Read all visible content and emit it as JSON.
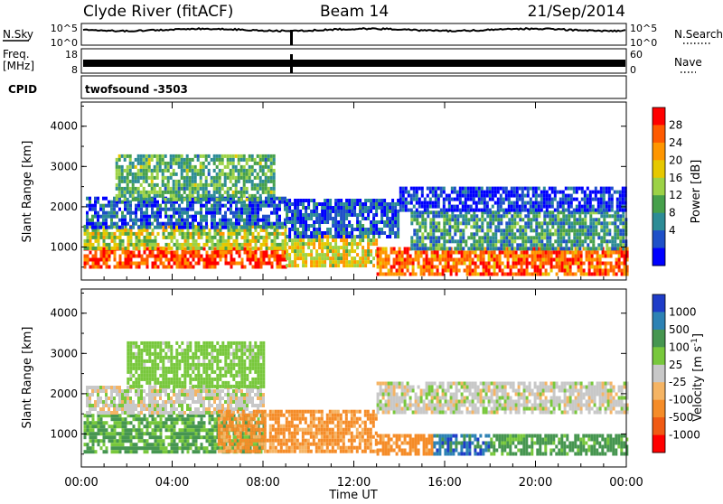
{
  "header": {
    "title": "Clyde River (fitACF)",
    "beam": "Beam 14",
    "date": "21/Sep/2014"
  },
  "status": {
    "nsky_label": "N.Sky",
    "nsky_ticks": [
      "10^5",
      "10^0"
    ],
    "nsearch_label": "N.Search",
    "nsearch_ticks": [
      "10^5",
      "10^0"
    ],
    "freq_label_1": "Freq.",
    "freq_label_2": "[MHz]",
    "freq_ticks": [
      "18",
      "8"
    ],
    "nave_label": "Nave",
    "nave_ticks": [
      "60",
      "0"
    ],
    "cpid_label": "CPID",
    "cpid_value": "twofsound  -3503"
  },
  "chart_data": [
    {
      "type": "heatmap",
      "quantity": "power",
      "ylabel": "Slant Range [km]",
      "ylim": [
        180,
        4600
      ],
      "yticks": [
        "1000",
        "2000",
        "3000",
        "4000"
      ],
      "xlim": [
        0,
        24
      ],
      "colorbar": {
        "label": "Power [dB]",
        "ticks": [
          "28",
          "24",
          "20",
          "16",
          "12",
          "8",
          "4"
        ],
        "colors": [
          "#ff0000",
          "#ff5a00",
          "#ff9600",
          "#e6c800",
          "#9cd246",
          "#46a04b",
          "#2d8c96",
          "#1e50c8",
          "#0000ff"
        ]
      },
      "regions": [
        {
          "t0": 0.1,
          "t1": 9.0,
          "r0": 480,
          "r1": 1000,
          "value": 28
        },
        {
          "t0": 0.1,
          "t1": 9.0,
          "r0": 1000,
          "r1": 1550,
          "value": 18
        },
        {
          "t0": 0.2,
          "t1": 9.0,
          "r0": 1500,
          "r1": 2250,
          "value": 8
        },
        {
          "t0": 1.5,
          "t1": 8.5,
          "r0": 2200,
          "r1": 3300,
          "value": 14
        },
        {
          "t0": 9.0,
          "t1": 13.0,
          "r0": 500,
          "r1": 1300,
          "value": 20
        },
        {
          "t0": 9.0,
          "t1": 14.0,
          "r0": 1300,
          "r1": 2200,
          "value": 8
        },
        {
          "t0": 13.0,
          "t1": 24.0,
          "r0": 350,
          "r1": 1000,
          "value": 26
        },
        {
          "t0": 14.5,
          "t1": 24.0,
          "r0": 1000,
          "r1": 1900,
          "value": 12
        },
        {
          "t0": 14.0,
          "t1": 24.0,
          "r0": 1900,
          "r1": 2500,
          "value": 6
        }
      ]
    },
    {
      "type": "heatmap",
      "quantity": "velocity",
      "ylabel": "Slant Range [km]",
      "ylim": [
        180,
        4600
      ],
      "yticks": [
        "1000",
        "2000",
        "3000",
        "4000"
      ],
      "xlim": [
        0,
        24
      ],
      "xlabel": "Time UT",
      "xticks": [
        "00:00",
        "04:00",
        "08:00",
        "12:00",
        "16:00",
        "20:00",
        "00:00"
      ],
      "colorbar": {
        "label": "Velocity [m s",
        "label_sup": "-1",
        "label_end": "]",
        "ticks": [
          "1000",
          "500",
          "100",
          "25",
          "-25",
          "-100",
          "-500",
          "-1000"
        ],
        "colors": [
          "#1e3cc8",
          "#2d82b4",
          "#469650",
          "#78c83c",
          "#c8c8c8",
          "#f5b464",
          "#f58c28",
          "#f05a14",
          "#ff0000"
        ]
      },
      "regions": [
        {
          "t0": 0.1,
          "t1": 8.0,
          "r0": 550,
          "r1": 1500,
          "value": 120
        },
        {
          "t0": 0.2,
          "t1": 8.0,
          "r0": 1500,
          "r1": 2200,
          "value": 0
        },
        {
          "t0": 2.0,
          "t1": 8.0,
          "r0": 2200,
          "r1": 3300,
          "value": 60
        },
        {
          "t0": 6.0,
          "t1": 13.0,
          "r0": 550,
          "r1": 1600,
          "value": -150
        },
        {
          "t0": 13.0,
          "t1": 15.5,
          "r0": 550,
          "r1": 1000,
          "value": -200
        },
        {
          "t0": 15.5,
          "t1": 18.0,
          "r0": 550,
          "r1": 1000,
          "value": 800
        },
        {
          "t0": 18.0,
          "t1": 24.0,
          "r0": 550,
          "r1": 1000,
          "value": 150
        },
        {
          "t0": 13.0,
          "t1": 24.0,
          "r0": 1500,
          "r1": 2300,
          "value": 0
        }
      ]
    }
  ]
}
